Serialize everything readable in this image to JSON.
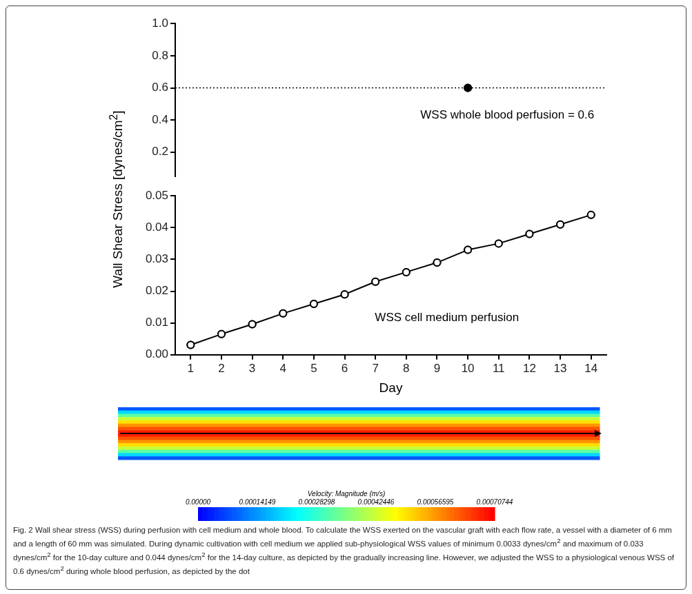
{
  "chart_data": [
    {
      "type": "scatter",
      "ylabel": "Wall Shear Stress [dynes/cm$^{2}$]",
      "x": [
        10
      ],
      "values": [
        0.6
      ],
      "color": "#000000",
      "marker": "circle",
      "xlim": [
        0.5,
        14.5
      ],
      "ylim": [
        0.05,
        1.0
      ],
      "yticks": [
        0.2,
        0.4,
        0.6,
        0.8,
        {
          "value": 1,
          "label": "1.0"
        }
      ],
      "tick_labels": "y",
      "grid": false,
      "legend": false,
      "ref_lines": [
        {
          "axis": "y",
          "value": 0.6,
          "line_style": "dotted",
          "color": "#000000"
        }
      ],
      "annotations": [
        "WSS whole blood perfusion = 0.6"
      ]
    },
    {
      "type": "line",
      "xlabel": "Day",
      "x": [
        1,
        2,
        3,
        4,
        5,
        6,
        7,
        8,
        9,
        10,
        11,
        12,
        13,
        14
      ],
      "values": [
        0.0031,
        0.0065,
        0.0096,
        0.013,
        0.016,
        0.019,
        0.023,
        0.026,
        0.029,
        0.033,
        0.035,
        0.038,
        0.041,
        0.044
      ],
      "color": "#000000",
      "marker": "circle",
      "line_style": "solid",
      "xlim": [
        0.5,
        14.5
      ],
      "xticks": [
        1,
        2,
        3,
        4,
        5,
        6,
        7,
        8,
        9,
        10,
        11,
        12,
        13,
        14
      ],
      "ylim": [
        0,
        0.05
      ],
      "yticks": [
        {
          "value": 0,
          "label": "0.00"
        },
        0.01,
        0.02,
        0.03,
        0.04,
        0.05
      ],
      "grid": false,
      "legend": false,
      "annotations": [
        "WSS cell medium perfusion"
      ]
    },
    {
      "type": "heatmap",
      "categories": [
        null
      ],
      "y_categories": [
        null,
        null,
        null,
        null,
        null,
        null,
        null,
        null,
        null,
        null,
        null,
        null,
        null,
        null,
        null,
        null
      ],
      "cells": [
        [
          8e-05
        ],
        [
          0.0002
        ],
        [
          0.00032
        ],
        [
          0.00042
        ],
        [
          0.0005
        ],
        [
          0.00057
        ],
        [
          0.00063
        ],
        [
          0.00068
        ],
        [
          0.00068
        ],
        [
          0.00063
        ],
        [
          0.00057
        ],
        [
          0.0005
        ],
        [
          0.00042
        ],
        [
          0.00032
        ],
        [
          0.0002
        ],
        [
          8e-05
        ]
      ],
      "clabel": "Velocity: Magnitude (m/s)",
      "clim": [
        0,
        0.00070744
      ],
      "cticks": [
        {
          "value": 0,
          "label": "0.00000"
        },
        0.00014149,
        0.00028298,
        0.00042446,
        0.00056595,
        0.00070744
      ],
      "tick_labels": false,
      "annotations": [
        "Fig. 2 Wall shear stress (WSS) during perfusion with cell medium and whole blood. To calculate the WSS exerted on the vascular graft with each flow rate, a vessel with a diameter of 6 mm and a length of 60 mm was simulated. During dynamic cultivation with cell medium we applied sub-physiological WSS values of minimum 0.0033 dynes/cm$^{2}$ and maximum of 0.033 dynes/cm$^{2}$ for the 10-day culture and 0.044 dynes/cm$^{2}$ for the 14-day culture, as depicted by the gradually increasing line. However, we adjusted the WSS to a physiological venous WSS of 0.6 dynes/cm$^{2}$ during whole blood perfusion, as depicted by the dot"
      ]
    }
  ]
}
